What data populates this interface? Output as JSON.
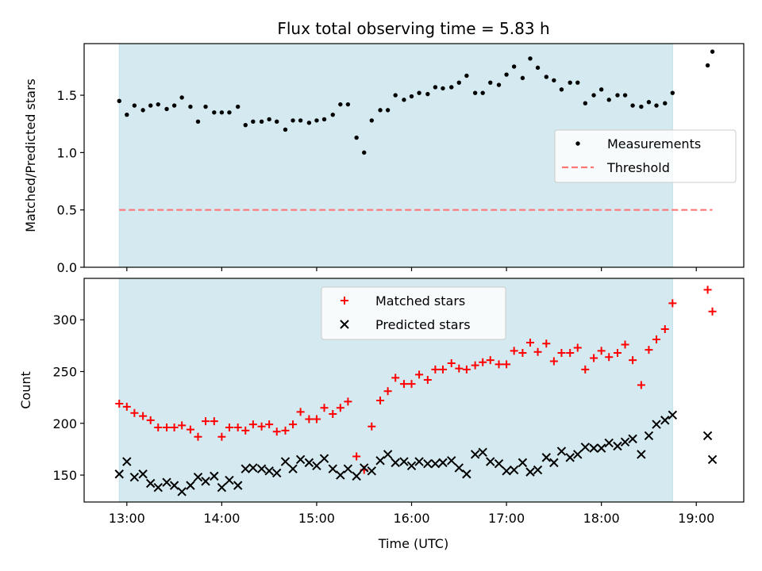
{
  "chart_data": [
    {
      "type": "scatter",
      "title": "Flux total observing time = 5.83 h",
      "ylabel": "Matched/Predicted stars",
      "xlabel": "",
      "xlim": [
        12.55,
        19.5
      ],
      "ylim": [
        0,
        1.95
      ],
      "yticks": [
        0.0,
        0.5,
        1.0,
        1.5
      ],
      "ytick_labels": [
        "0.0",
        "0.5",
        "1.0",
        "1.5"
      ],
      "xticks": [
        13,
        14,
        15,
        16,
        17,
        18,
        19
      ],
      "shaded_span": [
        12.92,
        18.75
      ],
      "shade_color": "#d4eaf0",
      "legend": {
        "position": "center-right",
        "entries": [
          {
            "label": "Measurements",
            "marker": "dot",
            "color": "#000000"
          },
          {
            "label": "Threshold",
            "marker": "dashed-line",
            "color": "#ff7777"
          }
        ]
      },
      "threshold": {
        "name": "Threshold",
        "value": 0.5,
        "x_range": [
          12.92,
          19.17
        ],
        "color": "#ff7777"
      },
      "series": [
        {
          "name": "Measurements",
          "color": "#000000",
          "x": [
            12.92,
            13.0,
            13.08,
            13.17,
            13.25,
            13.33,
            13.42,
            13.5,
            13.58,
            13.67,
            13.75,
            13.83,
            13.92,
            14.0,
            14.08,
            14.17,
            14.25,
            14.33,
            14.42,
            14.5,
            14.58,
            14.67,
            14.75,
            14.83,
            14.92,
            15.0,
            15.08,
            15.17,
            15.25,
            15.33,
            15.42,
            15.5,
            15.58,
            15.67,
            15.75,
            15.83,
            15.92,
            16.0,
            16.08,
            16.17,
            16.25,
            16.33,
            16.42,
            16.5,
            16.58,
            16.67,
            16.75,
            16.83,
            16.92,
            17.0,
            17.08,
            17.17,
            17.25,
            17.33,
            17.42,
            17.5,
            17.58,
            17.67,
            17.75,
            17.83,
            17.92,
            18.0,
            18.08,
            18.17,
            18.25,
            18.33,
            18.42,
            18.5,
            18.58,
            18.67,
            18.75,
            19.12,
            19.17
          ],
          "y": [
            1.45,
            1.33,
            1.41,
            1.37,
            1.41,
            1.42,
            1.38,
            1.41,
            1.48,
            1.4,
            1.27,
            1.4,
            1.35,
            1.35,
            1.35,
            1.4,
            1.24,
            1.27,
            1.27,
            1.29,
            1.27,
            1.2,
            1.28,
            1.28,
            1.26,
            1.28,
            1.29,
            1.33,
            1.42,
            1.42,
            1.13,
            1.0,
            1.28,
            1.37,
            1.37,
            1.5,
            1.46,
            1.49,
            1.52,
            1.51,
            1.57,
            1.56,
            1.57,
            1.61,
            1.67,
            1.52,
            1.52,
            1.61,
            1.59,
            1.68,
            1.75,
            1.65,
            1.82,
            1.74,
            1.66,
            1.63,
            1.55,
            1.61,
            1.61,
            1.43,
            1.5,
            1.55,
            1.46,
            1.5,
            1.5,
            1.41,
            1.4,
            1.44,
            1.41,
            1.43,
            1.52,
            1.76,
            1.88
          ]
        }
      ]
    },
    {
      "type": "scatter",
      "title": "",
      "ylabel": "Count",
      "xlabel": "Time (UTC)",
      "xlim": [
        12.55,
        19.5
      ],
      "ylim": [
        124,
        340
      ],
      "yticks": [
        150,
        200,
        250,
        300
      ],
      "ytick_labels": [
        "150",
        "200",
        "250",
        "300"
      ],
      "xticks": [
        13,
        14,
        15,
        16,
        17,
        18,
        19
      ],
      "xtick_labels": [
        "13:00",
        "14:00",
        "15:00",
        "16:00",
        "17:00",
        "18:00",
        "19:00"
      ],
      "shaded_span": [
        12.92,
        18.75
      ],
      "shade_color": "#d4eaf0",
      "legend": {
        "position": "top-center",
        "entries": [
          {
            "label": "Matched stars",
            "marker": "plus",
            "color": "#ff0000"
          },
          {
            "label": "Predicted stars",
            "marker": "x",
            "color": "#000000"
          }
        ]
      },
      "series": [
        {
          "name": "Matched stars",
          "color": "#ff0000",
          "marker": "plus",
          "x": [
            12.92,
            13.0,
            13.08,
            13.17,
            13.25,
            13.33,
            13.42,
            13.5,
            13.58,
            13.67,
            13.75,
            13.83,
            13.92,
            14.0,
            14.08,
            14.17,
            14.25,
            14.33,
            14.42,
            14.5,
            14.58,
            14.67,
            14.75,
            14.83,
            14.92,
            15.0,
            15.08,
            15.17,
            15.25,
            15.33,
            15.42,
            15.5,
            15.58,
            15.67,
            15.75,
            15.83,
            15.92,
            16.0,
            16.08,
            16.17,
            16.25,
            16.33,
            16.42,
            16.5,
            16.58,
            16.67,
            16.75,
            16.83,
            16.92,
            17.0,
            17.08,
            17.17,
            17.25,
            17.33,
            17.42,
            17.5,
            17.58,
            17.67,
            17.75,
            17.83,
            17.92,
            18.0,
            18.08,
            18.17,
            18.25,
            18.33,
            18.42,
            18.5,
            18.58,
            18.67,
            18.75,
            19.12,
            19.17
          ],
          "y": [
            219,
            216,
            210,
            207,
            203,
            196,
            196,
            196,
            198,
            194,
            187,
            202,
            202,
            187,
            196,
            196,
            193,
            199,
            197,
            199,
            192,
            193,
            199,
            211,
            204,
            204,
            215,
            209,
            215,
            221,
            168,
            155,
            197,
            222,
            231,
            244,
            238,
            238,
            247,
            242,
            252,
            252,
            258,
            253,
            252,
            256,
            259,
            261,
            257,
            257,
            270,
            268,
            278,
            269,
            277,
            260,
            268,
            268,
            273,
            252,
            263,
            270,
            264,
            268,
            276,
            261,
            237,
            271,
            281,
            291,
            316,
            329,
            308
          ]
        },
        {
          "name": "Predicted stars",
          "color": "#000000",
          "marker": "x",
          "x": [
            12.92,
            13.0,
            13.08,
            13.17,
            13.25,
            13.33,
            13.42,
            13.5,
            13.58,
            13.67,
            13.75,
            13.83,
            13.92,
            14.0,
            14.08,
            14.17,
            14.25,
            14.33,
            14.42,
            14.5,
            14.58,
            14.67,
            14.75,
            14.83,
            14.92,
            15.0,
            15.08,
            15.17,
            15.25,
            15.33,
            15.42,
            15.5,
            15.58,
            15.67,
            15.75,
            15.83,
            15.92,
            16.0,
            16.08,
            16.17,
            16.25,
            16.33,
            16.42,
            16.5,
            16.58,
            16.67,
            16.75,
            16.83,
            16.92,
            17.0,
            17.08,
            17.17,
            17.25,
            17.33,
            17.42,
            17.5,
            17.58,
            17.67,
            17.75,
            17.83,
            17.92,
            18.0,
            18.08,
            18.17,
            18.25,
            18.33,
            18.42,
            18.5,
            18.58,
            18.67,
            18.75,
            19.12,
            19.17
          ],
          "y": [
            151,
            163,
            148,
            151,
            142,
            138,
            143,
            140,
            134,
            140,
            148,
            144,
            149,
            138,
            145,
            140,
            156,
            157,
            156,
            154,
            152,
            163,
            156,
            165,
            162,
            159,
            166,
            156,
            150,
            156,
            149,
            157,
            154,
            164,
            170,
            162,
            163,
            159,
            163,
            161,
            161,
            162,
            164,
            157,
            151,
            170,
            172,
            163,
            161,
            154,
            155,
            162,
            153,
            155,
            167,
            162,
            173,
            167,
            170,
            177,
            176,
            176,
            181,
            178,
            182,
            185,
            170,
            188,
            199,
            203,
            208,
            188,
            165
          ]
        }
      ]
    }
  ]
}
